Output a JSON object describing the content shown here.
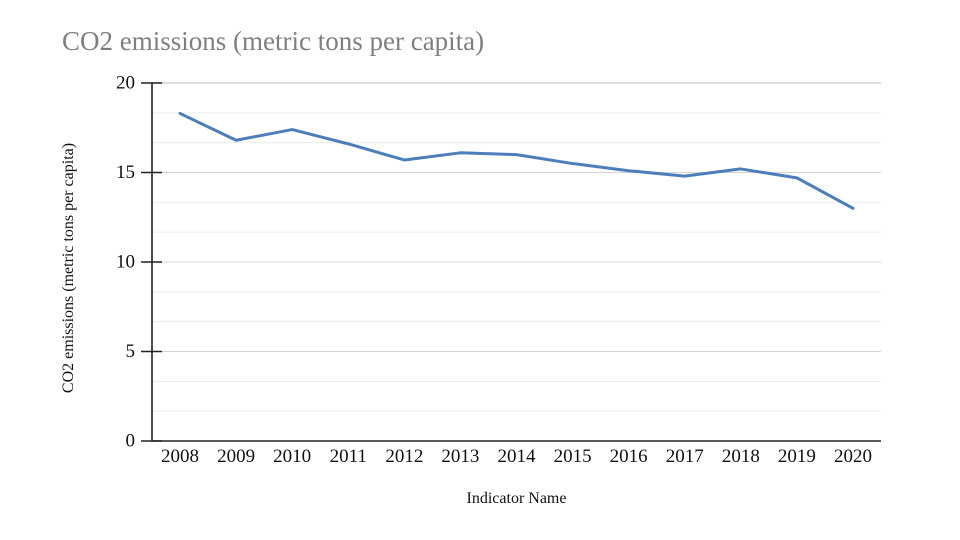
{
  "page": {
    "background": "#ffffff"
  },
  "chart_data": {
    "type": "line",
    "title": "CO2 emissions (metric tons per capita)",
    "xlabel": "Indicator Name",
    "ylabel": "CO2 emissions (metric tons per capita)",
    "x": [
      "2008",
      "2009",
      "2010",
      "2011",
      "2012",
      "2013",
      "2014",
      "2015",
      "2016",
      "2017",
      "2018",
      "2019",
      "2020"
    ],
    "series": [
      {
        "name": "CO2 emissions (metric tons per capita)",
        "values": [
          18.3,
          16.8,
          17.4,
          16.6,
          15.7,
          16.1,
          16.0,
          15.5,
          15.1,
          14.8,
          15.2,
          14.7,
          13.0
        ]
      }
    ],
    "ylim": [
      0,
      20
    ],
    "yticks": [
      0,
      5,
      10,
      15,
      20
    ],
    "minor_grid_divisions": 3,
    "grid": "horizontal",
    "legend": "none",
    "markers": "none",
    "colors": {
      "line": "#4d7ebc",
      "title": "#7f7f7f",
      "axis": "#222222",
      "text": "#111111",
      "major_grid": "#d4d4d4",
      "minor_grid": "#ececec"
    }
  }
}
